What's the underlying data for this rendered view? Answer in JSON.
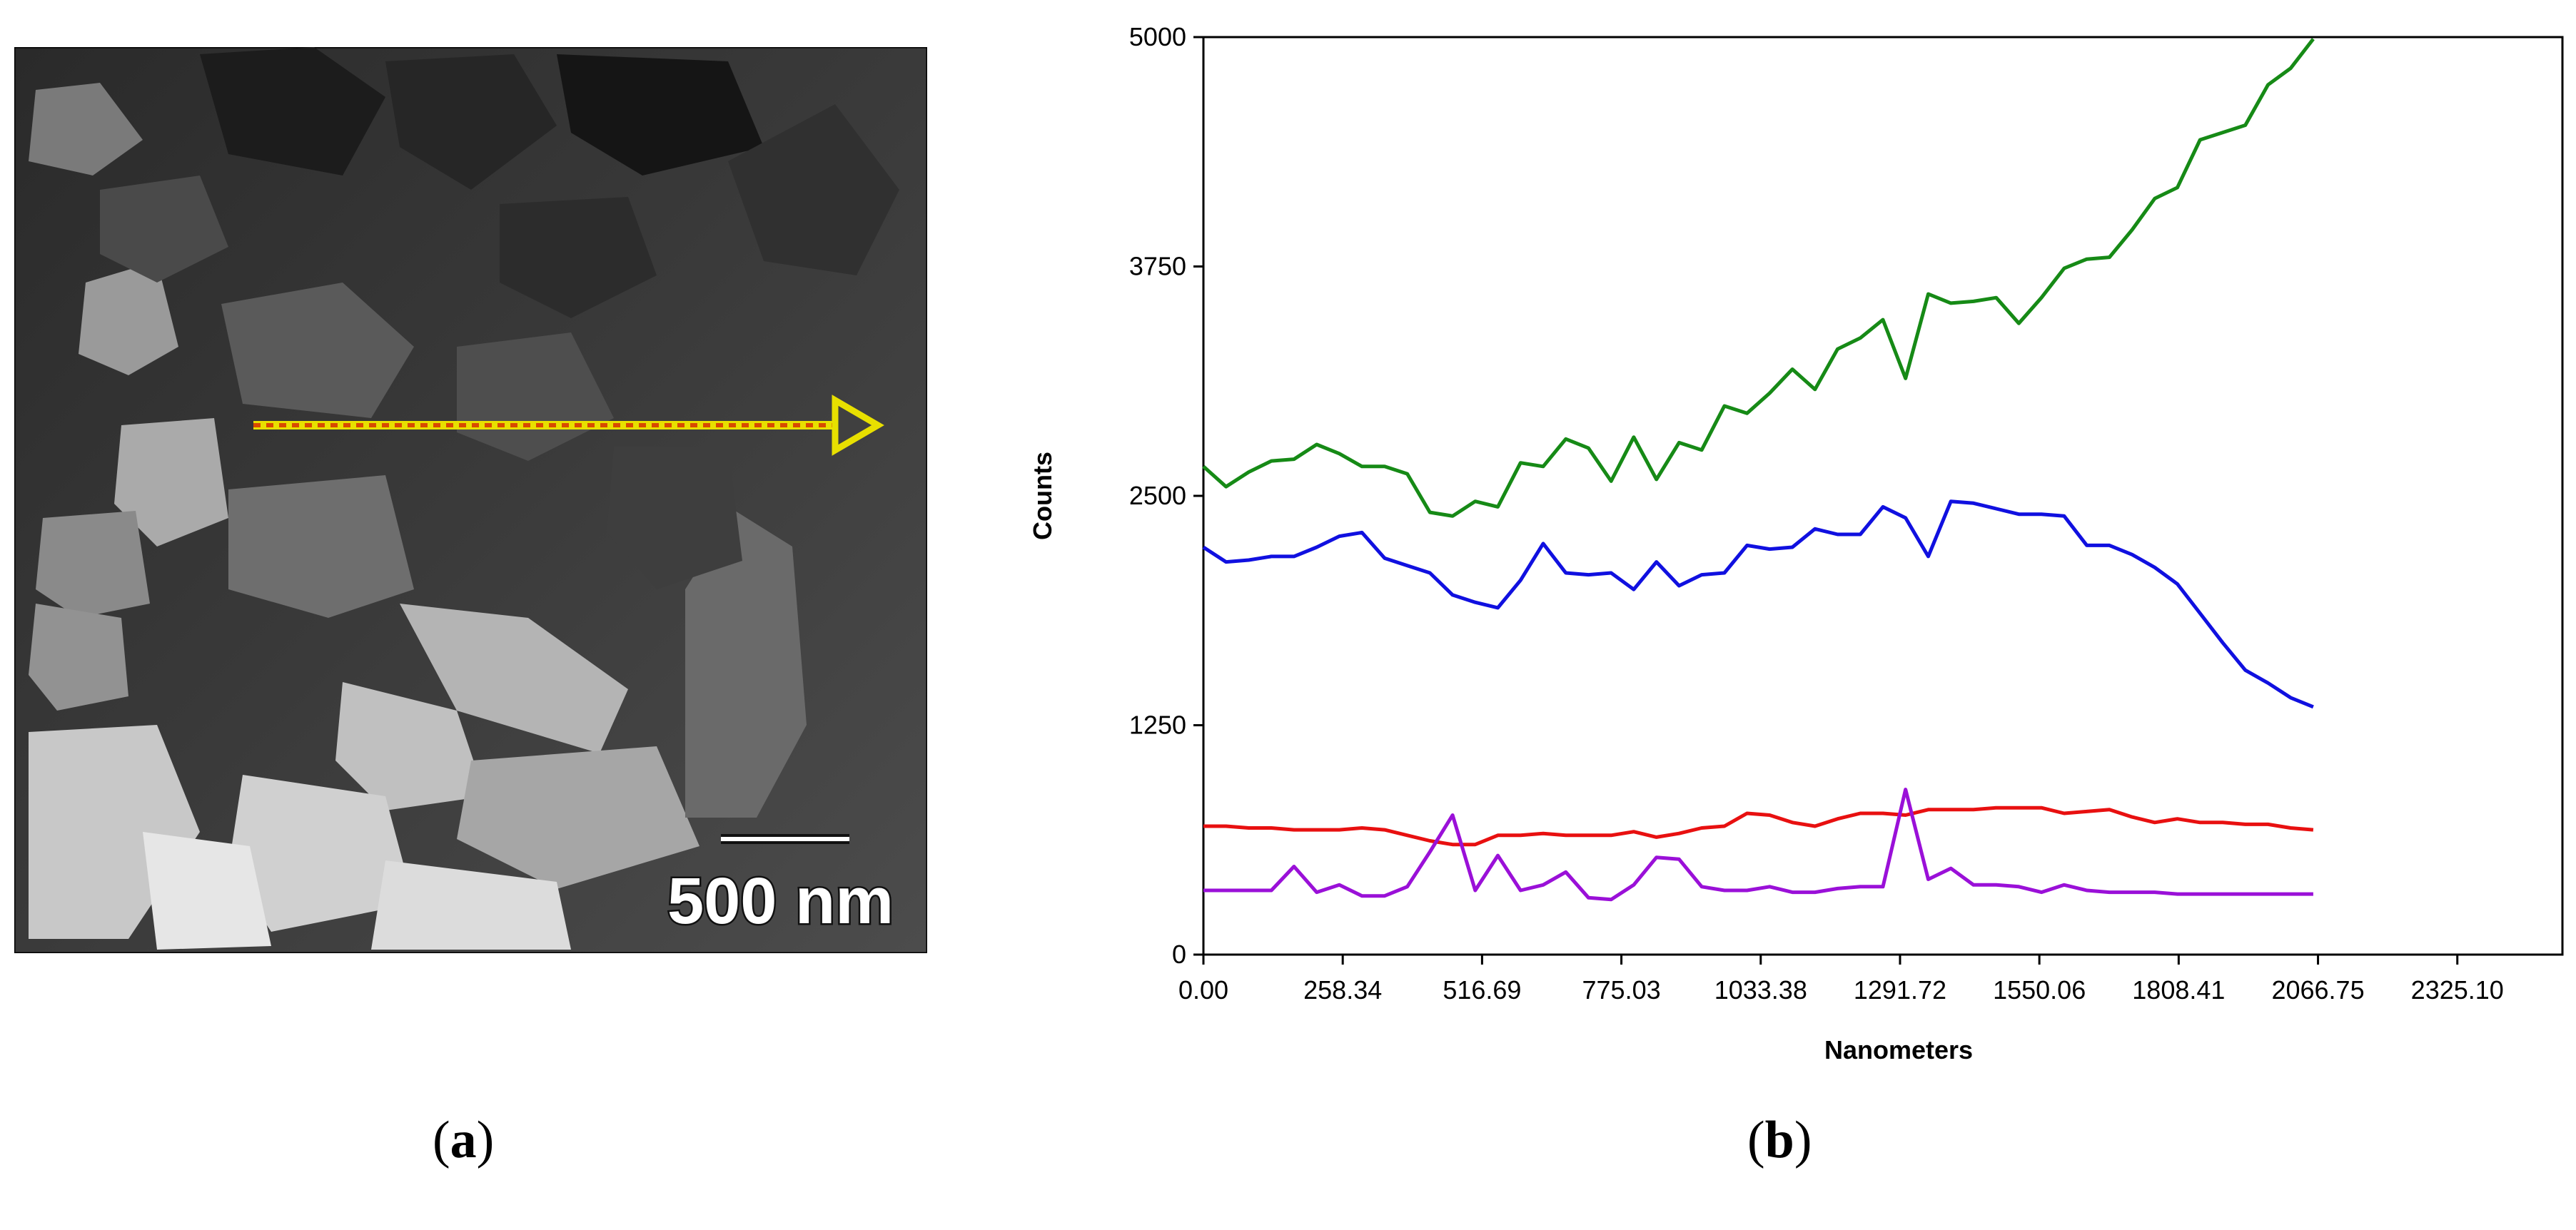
{
  "panel_a": {
    "scale_bar_label": "500 nm",
    "arrow_color": "#e8e000",
    "line_color": "#d84a00"
  },
  "captions": {
    "a": "a",
    "b": "b"
  },
  "chart_data": {
    "type": "line",
    "title": "",
    "xlabel": "Nanometers",
    "ylabel": "Counts",
    "xlim": [
      0,
      2520
    ],
    "ylim": [
      0,
      5000
    ],
    "x_tick_labels": [
      "0.00",
      "258.34",
      "516.69",
      "775.03",
      "1033.38",
      "1291.72",
      "1550.06",
      "1808.41",
      "2066.75",
      "2325.10"
    ],
    "y_tick_labels": [
      "0",
      "1250",
      "2500",
      "3750",
      "5000"
    ],
    "x_step": 42,
    "series": [
      {
        "name": "green",
        "color": "#168a16",
        "values": [
          2660,
          2550,
          2630,
          2690,
          2700,
          2780,
          2730,
          2660,
          2660,
          2620,
          2410,
          2390,
          2470,
          2440,
          2680,
          2660,
          2810,
          2760,
          2580,
          2820,
          2590,
          2790,
          2750,
          2990,
          2950,
          3060,
          3190,
          3080,
          3300,
          3360,
          3460,
          3140,
          3600,
          3550,
          3560,
          3580,
          3440,
          3580,
          3740,
          3790,
          3800,
          3950,
          4120,
          4180,
          4440,
          4480,
          4520,
          4740,
          4830,
          4990
        ]
      },
      {
        "name": "blue",
        "color": "#1010e0",
        "values": [
          2220,
          2140,
          2150,
          2170,
          2170,
          2220,
          2280,
          2300,
          2160,
          2120,
          2080,
          1960,
          1920,
          1890,
          2040,
          2240,
          2080,
          2070,
          2080,
          1990,
          2140,
          2010,
          2070,
          2080,
          2230,
          2210,
          2220,
          2320,
          2290,
          2290,
          2440,
          2380,
          2170,
          2470,
          2460,
          2430,
          2400,
          2400,
          2390,
          2230,
          2230,
          2180,
          2110,
          2020,
          1860,
          1700,
          1550,
          1480,
          1400,
          1350
        ]
      },
      {
        "name": "red",
        "color": "#e81010",
        "values": [
          700,
          700,
          690,
          690,
          680,
          680,
          680,
          690,
          680,
          650,
          620,
          600,
          600,
          650,
          650,
          660,
          650,
          650,
          650,
          670,
          640,
          660,
          690,
          700,
          770,
          760,
          720,
          700,
          740,
          770,
          770,
          760,
          790,
          790,
          790,
          800,
          800,
          800,
          770,
          780,
          790,
          750,
          720,
          740,
          720,
          720,
          710,
          710,
          690,
          680
        ]
      },
      {
        "name": "purple",
        "color": "#9a10d8",
        "values": [
          350,
          350,
          350,
          350,
          480,
          340,
          380,
          320,
          320,
          370,
          560,
          760,
          350,
          540,
          350,
          380,
          450,
          310,
          300,
          380,
          530,
          520,
          370,
          350,
          350,
          370,
          340,
          340,
          360,
          370,
          370,
          900,
          410,
          470,
          380,
          380,
          370,
          340,
          380,
          350,
          340,
          340,
          340,
          330,
          330,
          330,
          330,
          330,
          330,
          330
        ]
      }
    ]
  }
}
